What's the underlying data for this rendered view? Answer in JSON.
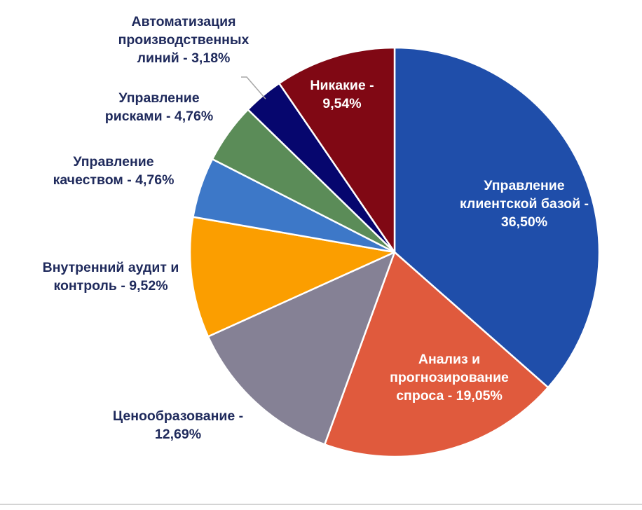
{
  "chart_data": {
    "type": "pie",
    "title": "",
    "start_angle_deg": 0,
    "direction": "clockwise",
    "slices": [
      {
        "label_lines": [
          "Управление",
          "клиентской базой -",
          "36,50%"
        ],
        "category": "Управление клиентской базой",
        "value": 36.5,
        "color": "#1f4eaa",
        "label_color": "#ffffff",
        "label_placement": "inside"
      },
      {
        "label_lines": [
          "Анализ и",
          "прогнозирование",
          "спроса - 19,05%"
        ],
        "category": "Анализ и прогнозирование спроса",
        "value": 19.05,
        "color": "#e05a3d",
        "label_color": "#ffffff",
        "label_placement": "inside"
      },
      {
        "label_lines": [
          "Ценообразование -",
          "12,69%"
        ],
        "category": "Ценообразование",
        "value": 12.69,
        "color": "#858195",
        "label_color": "#1f2a5c",
        "label_placement": "outside"
      },
      {
        "label_lines": [
          "Внутренний аудит и",
          "контроль - 9,52%"
        ],
        "category": "Внутренний аудит и контроль",
        "value": 9.52,
        "color": "#fb9e00",
        "label_color": "#1f2a5c",
        "label_placement": "outside"
      },
      {
        "label_lines": [
          "Управление",
          "качеством - 4,76%"
        ],
        "category": "Управление качеством",
        "value": 4.76,
        "color": "#3d78c8",
        "label_color": "#1f2a5c",
        "label_placement": "outside"
      },
      {
        "label_lines": [
          "Управление",
          "рисками  - 4,76%"
        ],
        "category": "Управление рисками",
        "value": 4.76,
        "color": "#5b8c58",
        "label_color": "#1f2a5c",
        "label_placement": "outside"
      },
      {
        "label_lines": [
          "Автоматизация",
          "производственных",
          "линий - 3,18%"
        ],
        "category": "Автоматизация производственных линий",
        "value": 3.18,
        "color": "#06066e",
        "label_color": "#1f2a5c",
        "label_placement": "outside",
        "leader_line": true
      },
      {
        "label_lines": [
          "Никакие -",
          "9,54%"
        ],
        "category": "Никакие",
        "value": 9.54,
        "color": "#800814",
        "label_color": "#ffffff",
        "label_placement": "inside"
      }
    ]
  }
}
